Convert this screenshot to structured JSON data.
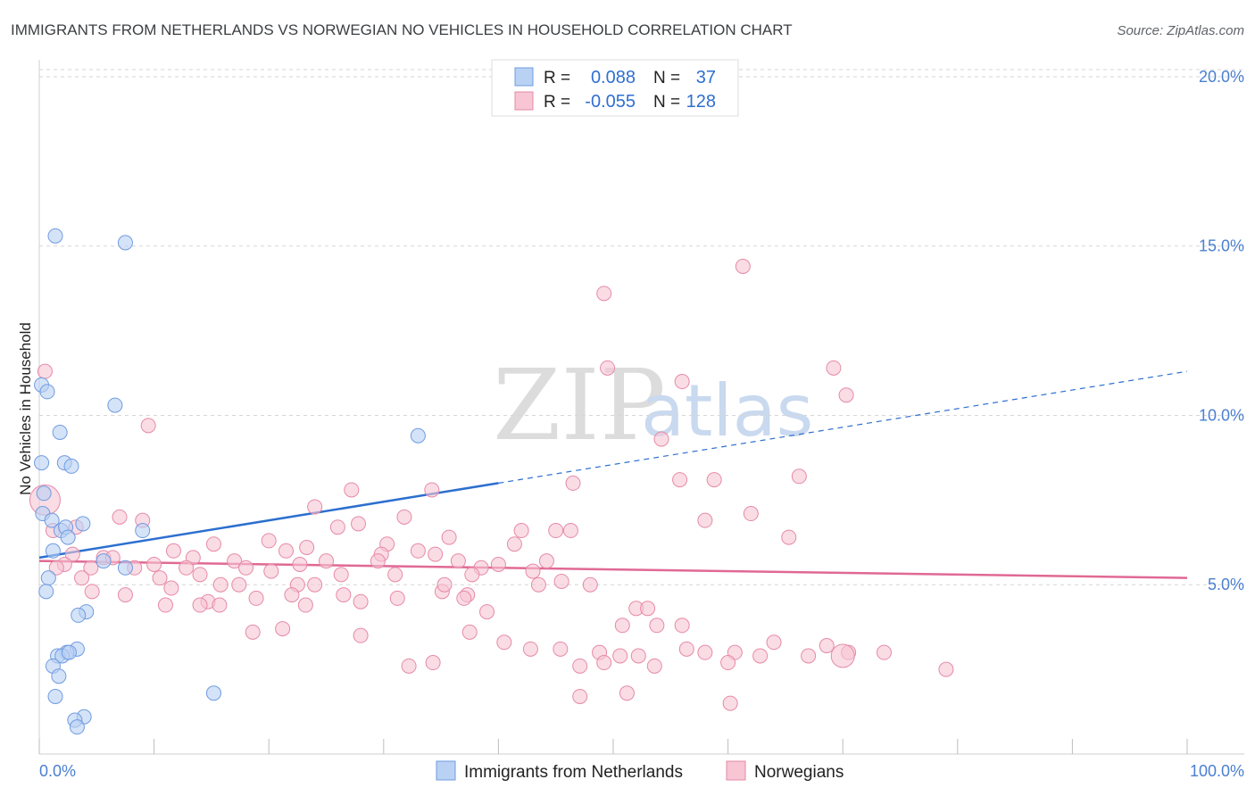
{
  "title": "IMMIGRANTS FROM NETHERLANDS VS NORWEGIAN NO VEHICLES IN HOUSEHOLD CORRELATION CHART",
  "source": "Source: ZipAtlas.com",
  "watermark": {
    "part1": "ZIP",
    "part2": "atlas"
  },
  "colors": {
    "blue_fill": "#b9d1f3",
    "blue_stroke": "#6f9be0",
    "blue_line": "#2c6fcf",
    "pink_fill": "#f7c5d4",
    "pink_stroke": "#e68aa8",
    "pink_line": "#e06994",
    "grid": "#d6d6d6",
    "axis_text": "#4a7fd0"
  },
  "legend": {
    "series1": {
      "r_label": "R =",
      "r_value": "0.088",
      "n_label": "N =",
      "n_value": "37"
    },
    "series2": {
      "r_label": "R =",
      "r_value": "-0.055",
      "n_label": "N =",
      "n_value": "128"
    }
  },
  "bottom_legend": {
    "series1": "Immigrants from Netherlands",
    "series2": "Norwegians"
  },
  "chart_data": {
    "type": "scatter",
    "title": "IMMIGRANTS FROM NETHERLANDS VS NORWEGIAN NO VEHICLES IN HOUSEHOLD CORRELATION CHART",
    "xlabel": "",
    "ylabel": "No Vehicles in Household",
    "xlim": [
      0,
      100
    ],
    "ylim": [
      0,
      20.5
    ],
    "x_tick_labels": [
      "0.0%",
      "100.0%"
    ],
    "y_ticks": [
      5,
      10,
      15,
      20
    ],
    "y_tick_labels": [
      "5.0%",
      "10.0%",
      "15.0%",
      "20.0%"
    ],
    "series": [
      {
        "name": "Immigrants from Netherlands",
        "r": 0.088,
        "n": 37,
        "trend": {
          "x0": 0,
          "y0": 5.8,
          "x1": 40,
          "y1": 8.0,
          "dash_to_x": 100,
          "dash_to_y": 11.3
        },
        "points": [
          [
            1.4,
            15.3
          ],
          [
            7.5,
            15.1
          ],
          [
            0.2,
            10.9
          ],
          [
            0.7,
            10.7
          ],
          [
            6.6,
            10.3
          ],
          [
            1.8,
            9.5
          ],
          [
            33.0,
            9.4
          ],
          [
            0.2,
            8.6
          ],
          [
            2.2,
            8.6
          ],
          [
            2.8,
            8.5
          ],
          [
            0.3,
            7.1
          ],
          [
            1.1,
            6.9
          ],
          [
            1.9,
            6.6
          ],
          [
            2.3,
            6.7
          ],
          [
            3.8,
            6.8
          ],
          [
            9.0,
            6.6
          ],
          [
            2.5,
            6.4
          ],
          [
            1.2,
            6.0
          ],
          [
            5.6,
            5.7
          ],
          [
            7.5,
            5.5
          ],
          [
            0.8,
            5.2
          ],
          [
            0.6,
            4.8
          ],
          [
            4.1,
            4.2
          ],
          [
            3.4,
            4.1
          ],
          [
            3.3,
            3.1
          ],
          [
            2.4,
            3.0
          ],
          [
            1.6,
            2.9
          ],
          [
            2.0,
            2.9
          ],
          [
            2.6,
            3.0
          ],
          [
            1.2,
            2.6
          ],
          [
            1.7,
            2.3
          ],
          [
            15.2,
            1.8
          ],
          [
            1.4,
            1.7
          ],
          [
            3.9,
            1.1
          ],
          [
            3.1,
            1.0
          ],
          [
            3.3,
            0.8
          ],
          [
            0.4,
            7.7
          ]
        ]
      },
      {
        "name": "Norwegians",
        "r": -0.055,
        "n": 128,
        "trend": {
          "x0": 0,
          "y0": 5.7,
          "x1": 100,
          "y1": 5.2
        },
        "points": [
          [
            61.3,
            14.4
          ],
          [
            49.2,
            13.6
          ],
          [
            49.5,
            11.4
          ],
          [
            69.2,
            11.4
          ],
          [
            56.0,
            11.0
          ],
          [
            70.3,
            10.6
          ],
          [
            9.5,
            9.7
          ],
          [
            54.2,
            9.3
          ],
          [
            66.2,
            8.2
          ],
          [
            55.8,
            8.1
          ],
          [
            58.8,
            8.1
          ],
          [
            46.5,
            8.0
          ],
          [
            27.2,
            7.8
          ],
          [
            34.2,
            7.8
          ],
          [
            24.0,
            7.3
          ],
          [
            62.0,
            7.1
          ],
          [
            7.0,
            7.0
          ],
          [
            31.8,
            7.0
          ],
          [
            9.0,
            6.9
          ],
          [
            58.0,
            6.9
          ],
          [
            27.8,
            6.8
          ],
          [
            1.2,
            6.6
          ],
          [
            3.2,
            6.7
          ],
          [
            26.0,
            6.7
          ],
          [
            42.0,
            6.6
          ],
          [
            45.0,
            6.6
          ],
          [
            46.3,
            6.6
          ],
          [
            65.3,
            6.4
          ],
          [
            35.7,
            6.4
          ],
          [
            20.0,
            6.3
          ],
          [
            15.2,
            6.2
          ],
          [
            23.3,
            6.1
          ],
          [
            30.3,
            6.2
          ],
          [
            41.4,
            6.2
          ],
          [
            11.7,
            6.0
          ],
          [
            21.5,
            6.0
          ],
          [
            29.8,
            5.9
          ],
          [
            33.0,
            6.0
          ],
          [
            34.5,
            5.9
          ],
          [
            2.9,
            5.9
          ],
          [
            5.6,
            5.8
          ],
          [
            6.4,
            5.8
          ],
          [
            13.4,
            5.8
          ],
          [
            17.0,
            5.7
          ],
          [
            22.7,
            5.6
          ],
          [
            25.0,
            5.7
          ],
          [
            29.5,
            5.7
          ],
          [
            36.5,
            5.7
          ],
          [
            44.2,
            5.7
          ],
          [
            2.2,
            5.6
          ],
          [
            8.3,
            5.5
          ],
          [
            10.0,
            5.6
          ],
          [
            12.8,
            5.5
          ],
          [
            18.0,
            5.5
          ],
          [
            40.0,
            5.6
          ],
          [
            1.5,
            5.5
          ],
          [
            4.5,
            5.5
          ],
          [
            14.0,
            5.3
          ],
          [
            20.2,
            5.4
          ],
          [
            26.3,
            5.3
          ],
          [
            31.0,
            5.3
          ],
          [
            38.5,
            5.5
          ],
          [
            43.0,
            5.4
          ],
          [
            37.7,
            5.3
          ],
          [
            3.7,
            5.2
          ],
          [
            10.5,
            5.2
          ],
          [
            15.8,
            5.0
          ],
          [
            17.4,
            5.0
          ],
          [
            22.5,
            5.0
          ],
          [
            24.0,
            5.0
          ],
          [
            45.5,
            5.1
          ],
          [
            43.5,
            5.0
          ],
          [
            35.1,
            4.8
          ],
          [
            48.0,
            5.0
          ],
          [
            11.5,
            4.9
          ],
          [
            7.5,
            4.7
          ],
          [
            18.9,
            4.6
          ],
          [
            22.0,
            4.7
          ],
          [
            26.5,
            4.7
          ],
          [
            37.3,
            4.7
          ],
          [
            23.2,
            4.4
          ],
          [
            28.0,
            4.5
          ],
          [
            31.2,
            4.6
          ],
          [
            37.0,
            4.6
          ],
          [
            4.6,
            4.8
          ],
          [
            14.7,
            4.5
          ],
          [
            39.0,
            4.2
          ],
          [
            15.7,
            4.4
          ],
          [
            11.0,
            4.4
          ],
          [
            14.0,
            4.4
          ],
          [
            52.0,
            4.3
          ],
          [
            53.0,
            4.3
          ],
          [
            18.6,
            3.6
          ],
          [
            21.2,
            3.7
          ],
          [
            28.0,
            3.5
          ],
          [
            37.5,
            3.6
          ],
          [
            40.5,
            3.3
          ],
          [
            50.8,
            3.8
          ],
          [
            53.8,
            3.8
          ],
          [
            45.4,
            3.1
          ],
          [
            48.8,
            3.0
          ],
          [
            50.6,
            2.9
          ],
          [
            52.2,
            2.9
          ],
          [
            56.0,
            3.8
          ],
          [
            56.4,
            3.1
          ],
          [
            60.6,
            3.0
          ],
          [
            62.8,
            2.9
          ],
          [
            60.0,
            2.7
          ],
          [
            64.0,
            3.3
          ],
          [
            67.0,
            2.9
          ],
          [
            68.6,
            3.2
          ],
          [
            70.5,
            3.0
          ],
          [
            73.6,
            3.0
          ],
          [
            79.0,
            2.5
          ],
          [
            32.2,
            2.6
          ],
          [
            34.3,
            2.7
          ],
          [
            58.0,
            3.0
          ],
          [
            49.2,
            2.7
          ],
          [
            47.1,
            2.6
          ],
          [
            53.6,
            2.6
          ],
          [
            47.1,
            1.7
          ],
          [
            51.2,
            1.8
          ],
          [
            60.2,
            1.5
          ],
          [
            0.5,
            11.3
          ],
          [
            0.5,
            7.5
          ],
          [
            70.0,
            2.9
          ],
          [
            42.8,
            3.1
          ],
          [
            35.3,
            5.0
          ]
        ]
      }
    ]
  }
}
